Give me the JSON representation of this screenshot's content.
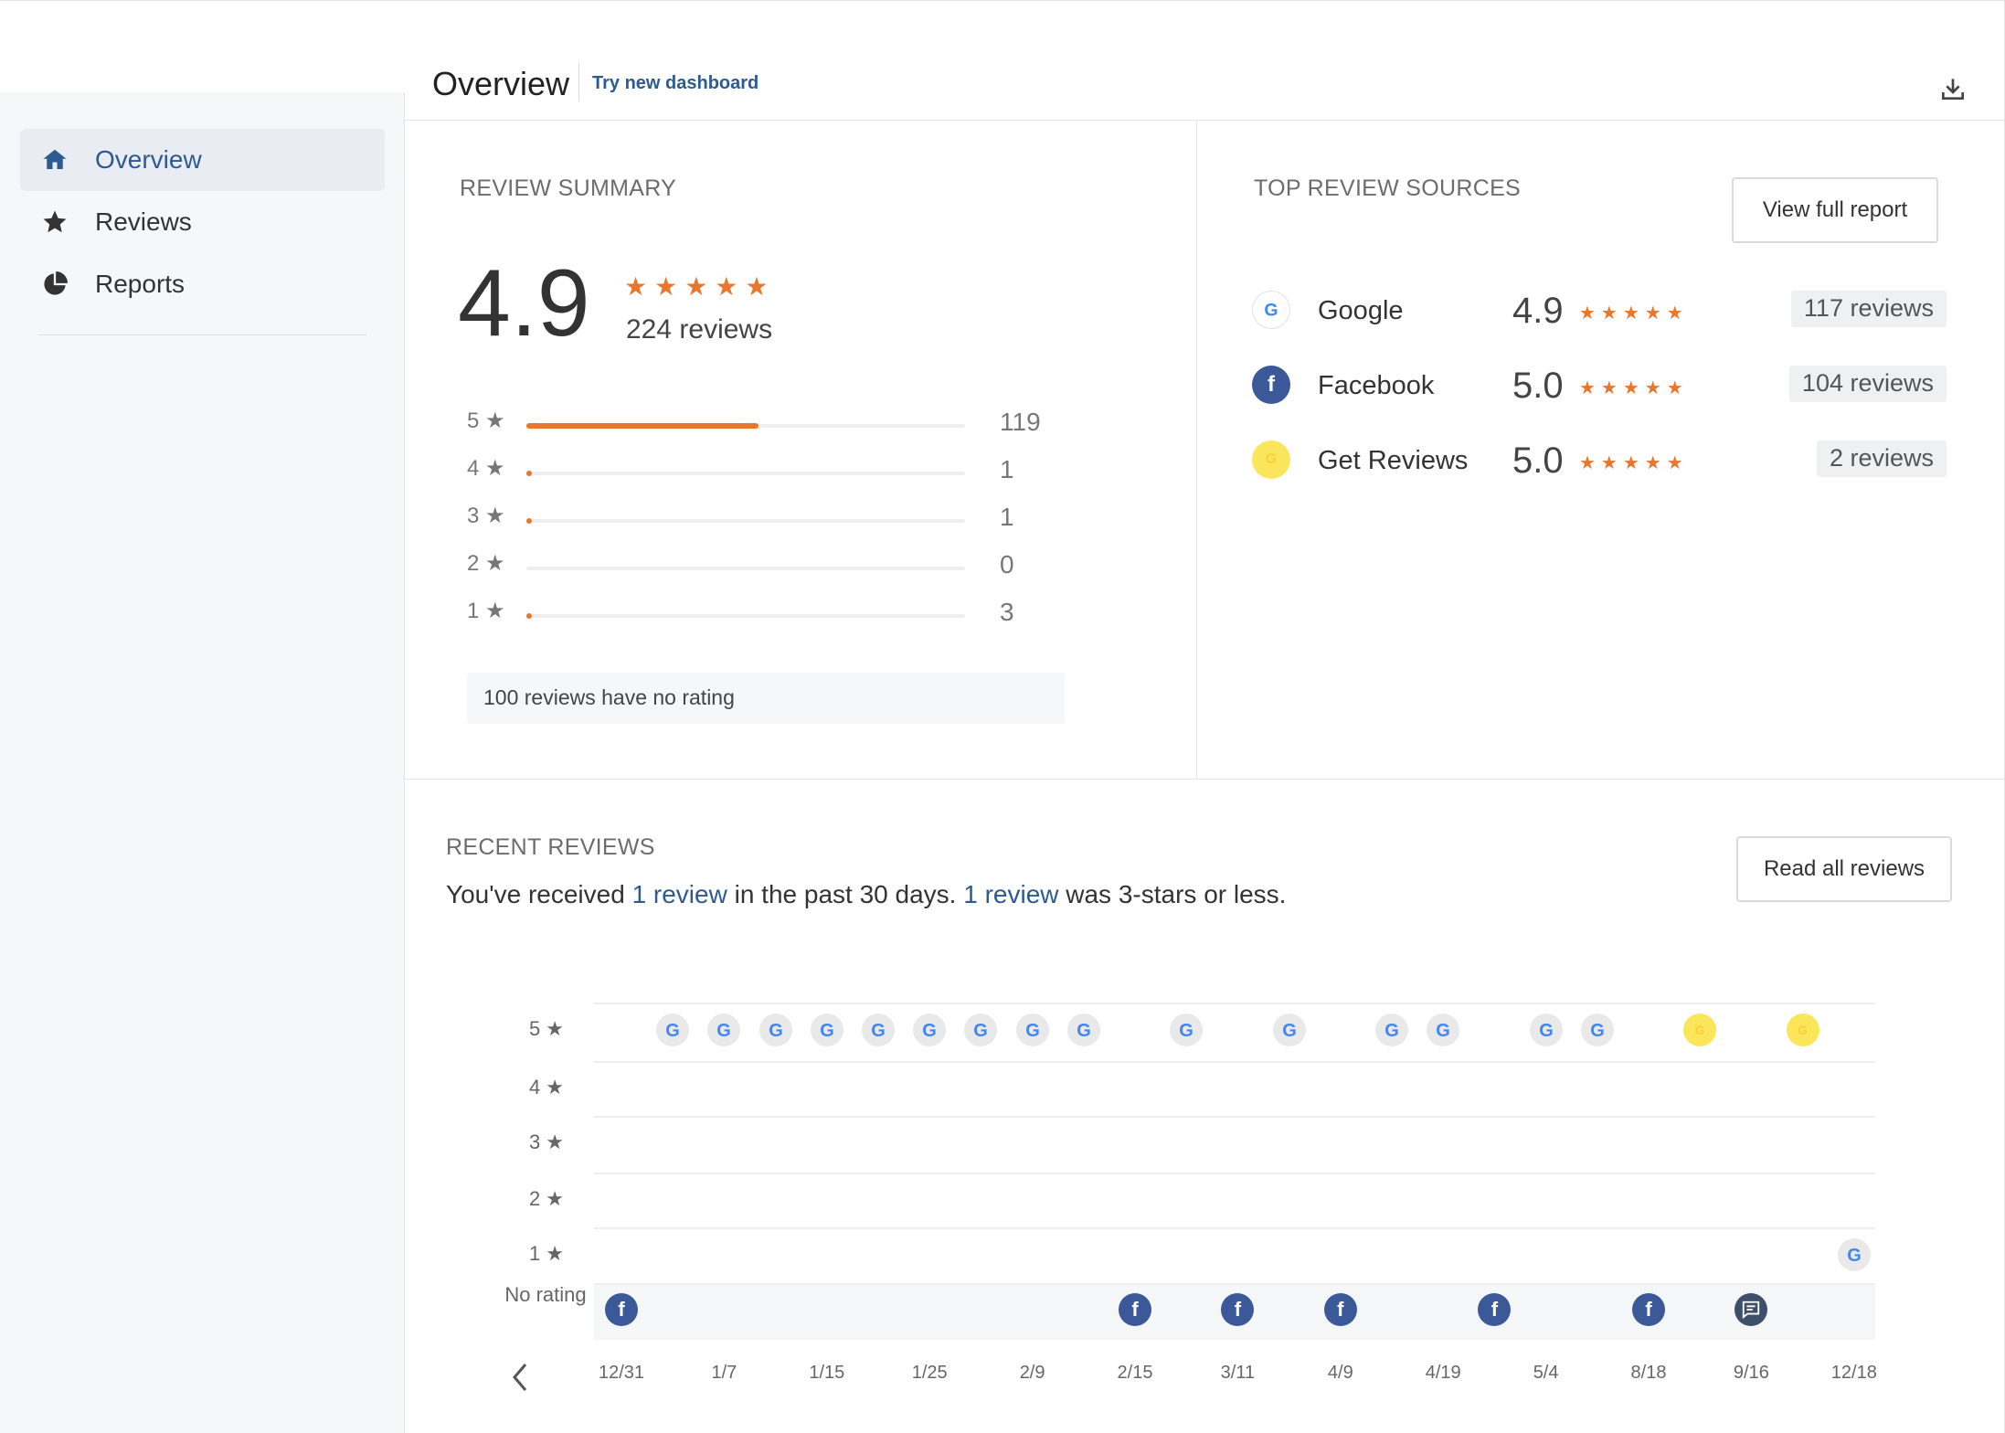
{
  "header": {
    "title": "Overview",
    "try_link": "Try new dashboard"
  },
  "sidebar": {
    "items": [
      {
        "label": "Overview",
        "icon": "home-icon",
        "active": true
      },
      {
        "label": "Reviews",
        "icon": "star-icon",
        "active": false
      },
      {
        "label": "Reports",
        "icon": "pie-chart-icon",
        "active": false
      }
    ]
  },
  "summary": {
    "title": "REVIEW SUMMARY",
    "rating": "4.9",
    "stars": "★★★★★",
    "total": "224 reviews",
    "breakdown": [
      {
        "label": "5 ★",
        "count": "119",
        "fraction": 0.53
      },
      {
        "label": "4 ★",
        "count": "1",
        "fraction": 0.005
      },
      {
        "label": "3 ★",
        "count": "1",
        "fraction": 0.005
      },
      {
        "label": "2 ★",
        "count": "0",
        "fraction": 0
      },
      {
        "label": "1 ★",
        "count": "3",
        "fraction": 0.013
      }
    ],
    "no_rating": "100 reviews have no rating"
  },
  "sources": {
    "title": "TOP REVIEW SOURCES",
    "button": "View full report",
    "items": [
      {
        "name": "Google",
        "rating": "4.9",
        "stars": "★★★★★",
        "count": "117 reviews",
        "icon": "google-icon"
      },
      {
        "name": "Facebook",
        "rating": "5.0",
        "stars": "★★★★★",
        "count": "104 reviews",
        "icon": "facebook-icon"
      },
      {
        "name": "Get Reviews",
        "rating": "5.0",
        "stars": "★★★★★",
        "count": "2 reviews",
        "icon": "get-reviews-icon"
      }
    ]
  },
  "recent": {
    "title": "RECENT REVIEWS",
    "button": "Read all reviews",
    "desc_1": "You've received ",
    "link_1": "1 review",
    "desc_2": " in the past 30 days. ",
    "link_2": "1 review",
    "desc_3": " was 3-stars or less."
  },
  "colors": {
    "accent": "#2c5a91",
    "star": "#e8762d",
    "facebook": "#3b5998",
    "get_reviews": "#fbe55a"
  },
  "chart_data": {
    "type": "scatter",
    "row_labels": [
      "5 ★",
      "4 ★",
      "3 ★",
      "2 ★",
      "1 ★",
      "No rating"
    ],
    "x_ticks": [
      "12/31",
      "1/7",
      "1/15",
      "1/25",
      "2/9",
      "2/15",
      "3/11",
      "4/9",
      "4/19",
      "5/4",
      "8/18",
      "9/16",
      "12/18"
    ],
    "points": [
      {
        "x": 1,
        "row": "5",
        "source": "google"
      },
      {
        "x": 2,
        "row": "5",
        "source": "google"
      },
      {
        "x": 3,
        "row": "5",
        "source": "google"
      },
      {
        "x": 4,
        "row": "5",
        "source": "google"
      },
      {
        "x": 5,
        "row": "5",
        "source": "google"
      },
      {
        "x": 6,
        "row": "5",
        "source": "google"
      },
      {
        "x": 7,
        "row": "5",
        "source": "google"
      },
      {
        "x": 8,
        "row": "5",
        "source": "google"
      },
      {
        "x": 9,
        "row": "5",
        "source": "google"
      },
      {
        "x": 11,
        "row": "5",
        "source": "google"
      },
      {
        "x": 13,
        "row": "5",
        "source": "google"
      },
      {
        "x": 15,
        "row": "5",
        "source": "google"
      },
      {
        "x": 16,
        "row": "5",
        "source": "google"
      },
      {
        "x": 18,
        "row": "5",
        "source": "google"
      },
      {
        "x": 19,
        "row": "5",
        "source": "google"
      },
      {
        "x": 21,
        "row": "5",
        "source": "getreviews"
      },
      {
        "x": 23,
        "row": "5",
        "source": "getreviews"
      },
      {
        "x": 24,
        "row": "1",
        "source": "google"
      },
      {
        "x": 0,
        "row": "none",
        "source": "facebook"
      },
      {
        "x": 10,
        "row": "none",
        "source": "facebook"
      },
      {
        "x": 12,
        "row": "none",
        "source": "facebook"
      },
      {
        "x": 14,
        "row": "none",
        "source": "facebook"
      },
      {
        "x": 17,
        "row": "none",
        "source": "facebook"
      },
      {
        "x": 20,
        "row": "none",
        "source": "facebook"
      },
      {
        "x": 22,
        "row": "none",
        "source": "comment"
      }
    ]
  }
}
